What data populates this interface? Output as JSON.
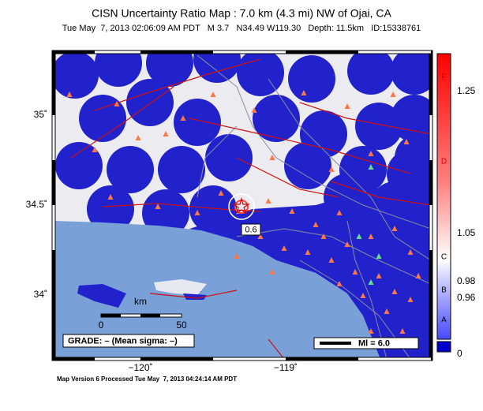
{
  "title": "CISN Uncertainty Ratio Map : 7.0 km (4.3 mi) NW of Ojai, CA",
  "subtitle": "Tue May  7, 2013 02:06:09 AM PDT   M 3.7   N34.49 W119.30   Depth: 11.5km   ID:15338761",
  "map": {
    "lat_labels": [
      "35˚",
      "34.5˚",
      "34˚"
    ],
    "lon_labels": [
      "−120˚",
      "−119˚"
    ],
    "epicenter_label": "0.6",
    "scale_bar": {
      "unit": "km",
      "start": "0",
      "end": "50"
    },
    "grade": "GRADE: – (Mean sigma: –)",
    "magnitude_legend": "Ml = 6.0"
  },
  "colorbar": {
    "grades": [
      "F",
      "D",
      "C",
      "B",
      "A"
    ],
    "ticks": [
      "1.25",
      "1.05",
      "0.98",
      "0.96",
      "0"
    ]
  },
  "footer": "Map Version 6 Processed Tue May  7, 2013 04:24:14 AM PDT"
}
